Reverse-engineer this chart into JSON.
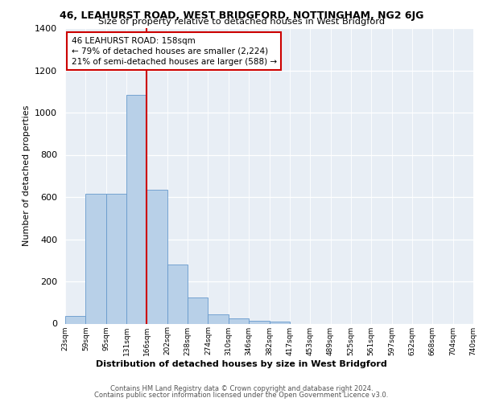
{
  "title": "46, LEAHURST ROAD, WEST BRIDGFORD, NOTTINGHAM, NG2 6JG",
  "subtitle": "Size of property relative to detached houses in West Bridgford",
  "xlabel": "Distribution of detached houses by size in West Bridgford",
  "ylabel": "Number of detached properties",
  "bin_labels": [
    "23sqm",
    "59sqm",
    "95sqm",
    "131sqm",
    "166sqm",
    "202sqm",
    "238sqm",
    "274sqm",
    "310sqm",
    "346sqm",
    "382sqm",
    "417sqm",
    "453sqm",
    "489sqm",
    "525sqm",
    "561sqm",
    "597sqm",
    "632sqm",
    "668sqm",
    "704sqm",
    "740sqm"
  ],
  "bar_values": [
    35,
    615,
    615,
    1085,
    635,
    280,
    125,
    45,
    25,
    15,
    10,
    0,
    0,
    0,
    0,
    0,
    0,
    0,
    0,
    0
  ],
  "bar_color": "#b8d0e8",
  "bar_edge_color": "#6699cc",
  "vline_x": 4.0,
  "vline_color": "#cc0000",
  "annotation_text": "46 LEAHURST ROAD: 158sqm\n← 79% of detached houses are smaller (2,224)\n21% of semi-detached houses are larger (588) →",
  "annotation_box_color": "#ffffff",
  "annotation_box_edge": "#cc0000",
  "ylim": [
    0,
    1400
  ],
  "yticks": [
    0,
    200,
    400,
    600,
    800,
    1000,
    1200,
    1400
  ],
  "footer_line1": "Contains HM Land Registry data © Crown copyright and database right 2024.",
  "footer_line2": "Contains public sector information licensed under the Open Government Licence v3.0.",
  "plot_bg_color": "#e8eef5"
}
